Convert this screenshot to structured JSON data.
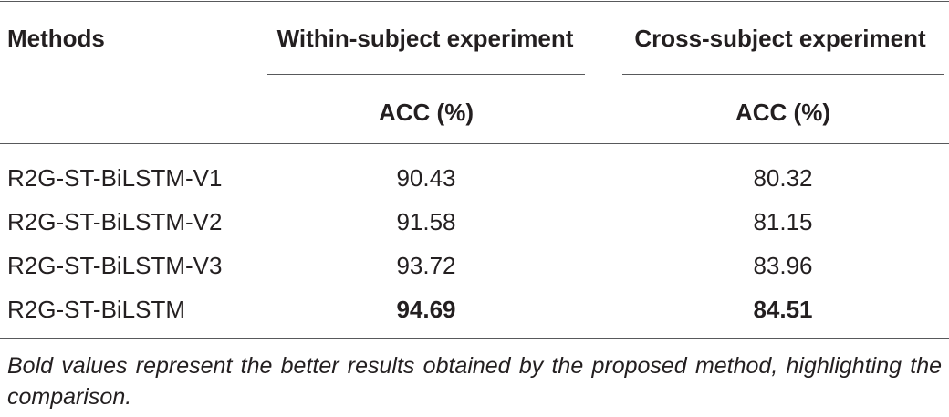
{
  "table": {
    "headers": {
      "methods": "Methods",
      "within": "Within-subject experiment",
      "cross": "Cross-subject experiment",
      "acc_within": "ACC (%)",
      "acc_cross": "ACC (%)"
    },
    "rows": [
      {
        "method": "R2G-ST-BiLSTM-V1",
        "within": "90.43",
        "cross": "80.32",
        "bold": false
      },
      {
        "method": "R2G-ST-BiLSTM-V2",
        "within": "91.58",
        "cross": "81.15",
        "bold": false
      },
      {
        "method": "R2G-ST-BiLSTM-V3",
        "within": "93.72",
        "cross": "83.96",
        "bold": false
      },
      {
        "method": "R2G-ST-BiLSTM",
        "within": "94.69",
        "cross": "84.51",
        "bold": true
      }
    ],
    "footnote": "Bold values represent the better results obtained by the proposed method, highlighting the comparison."
  }
}
